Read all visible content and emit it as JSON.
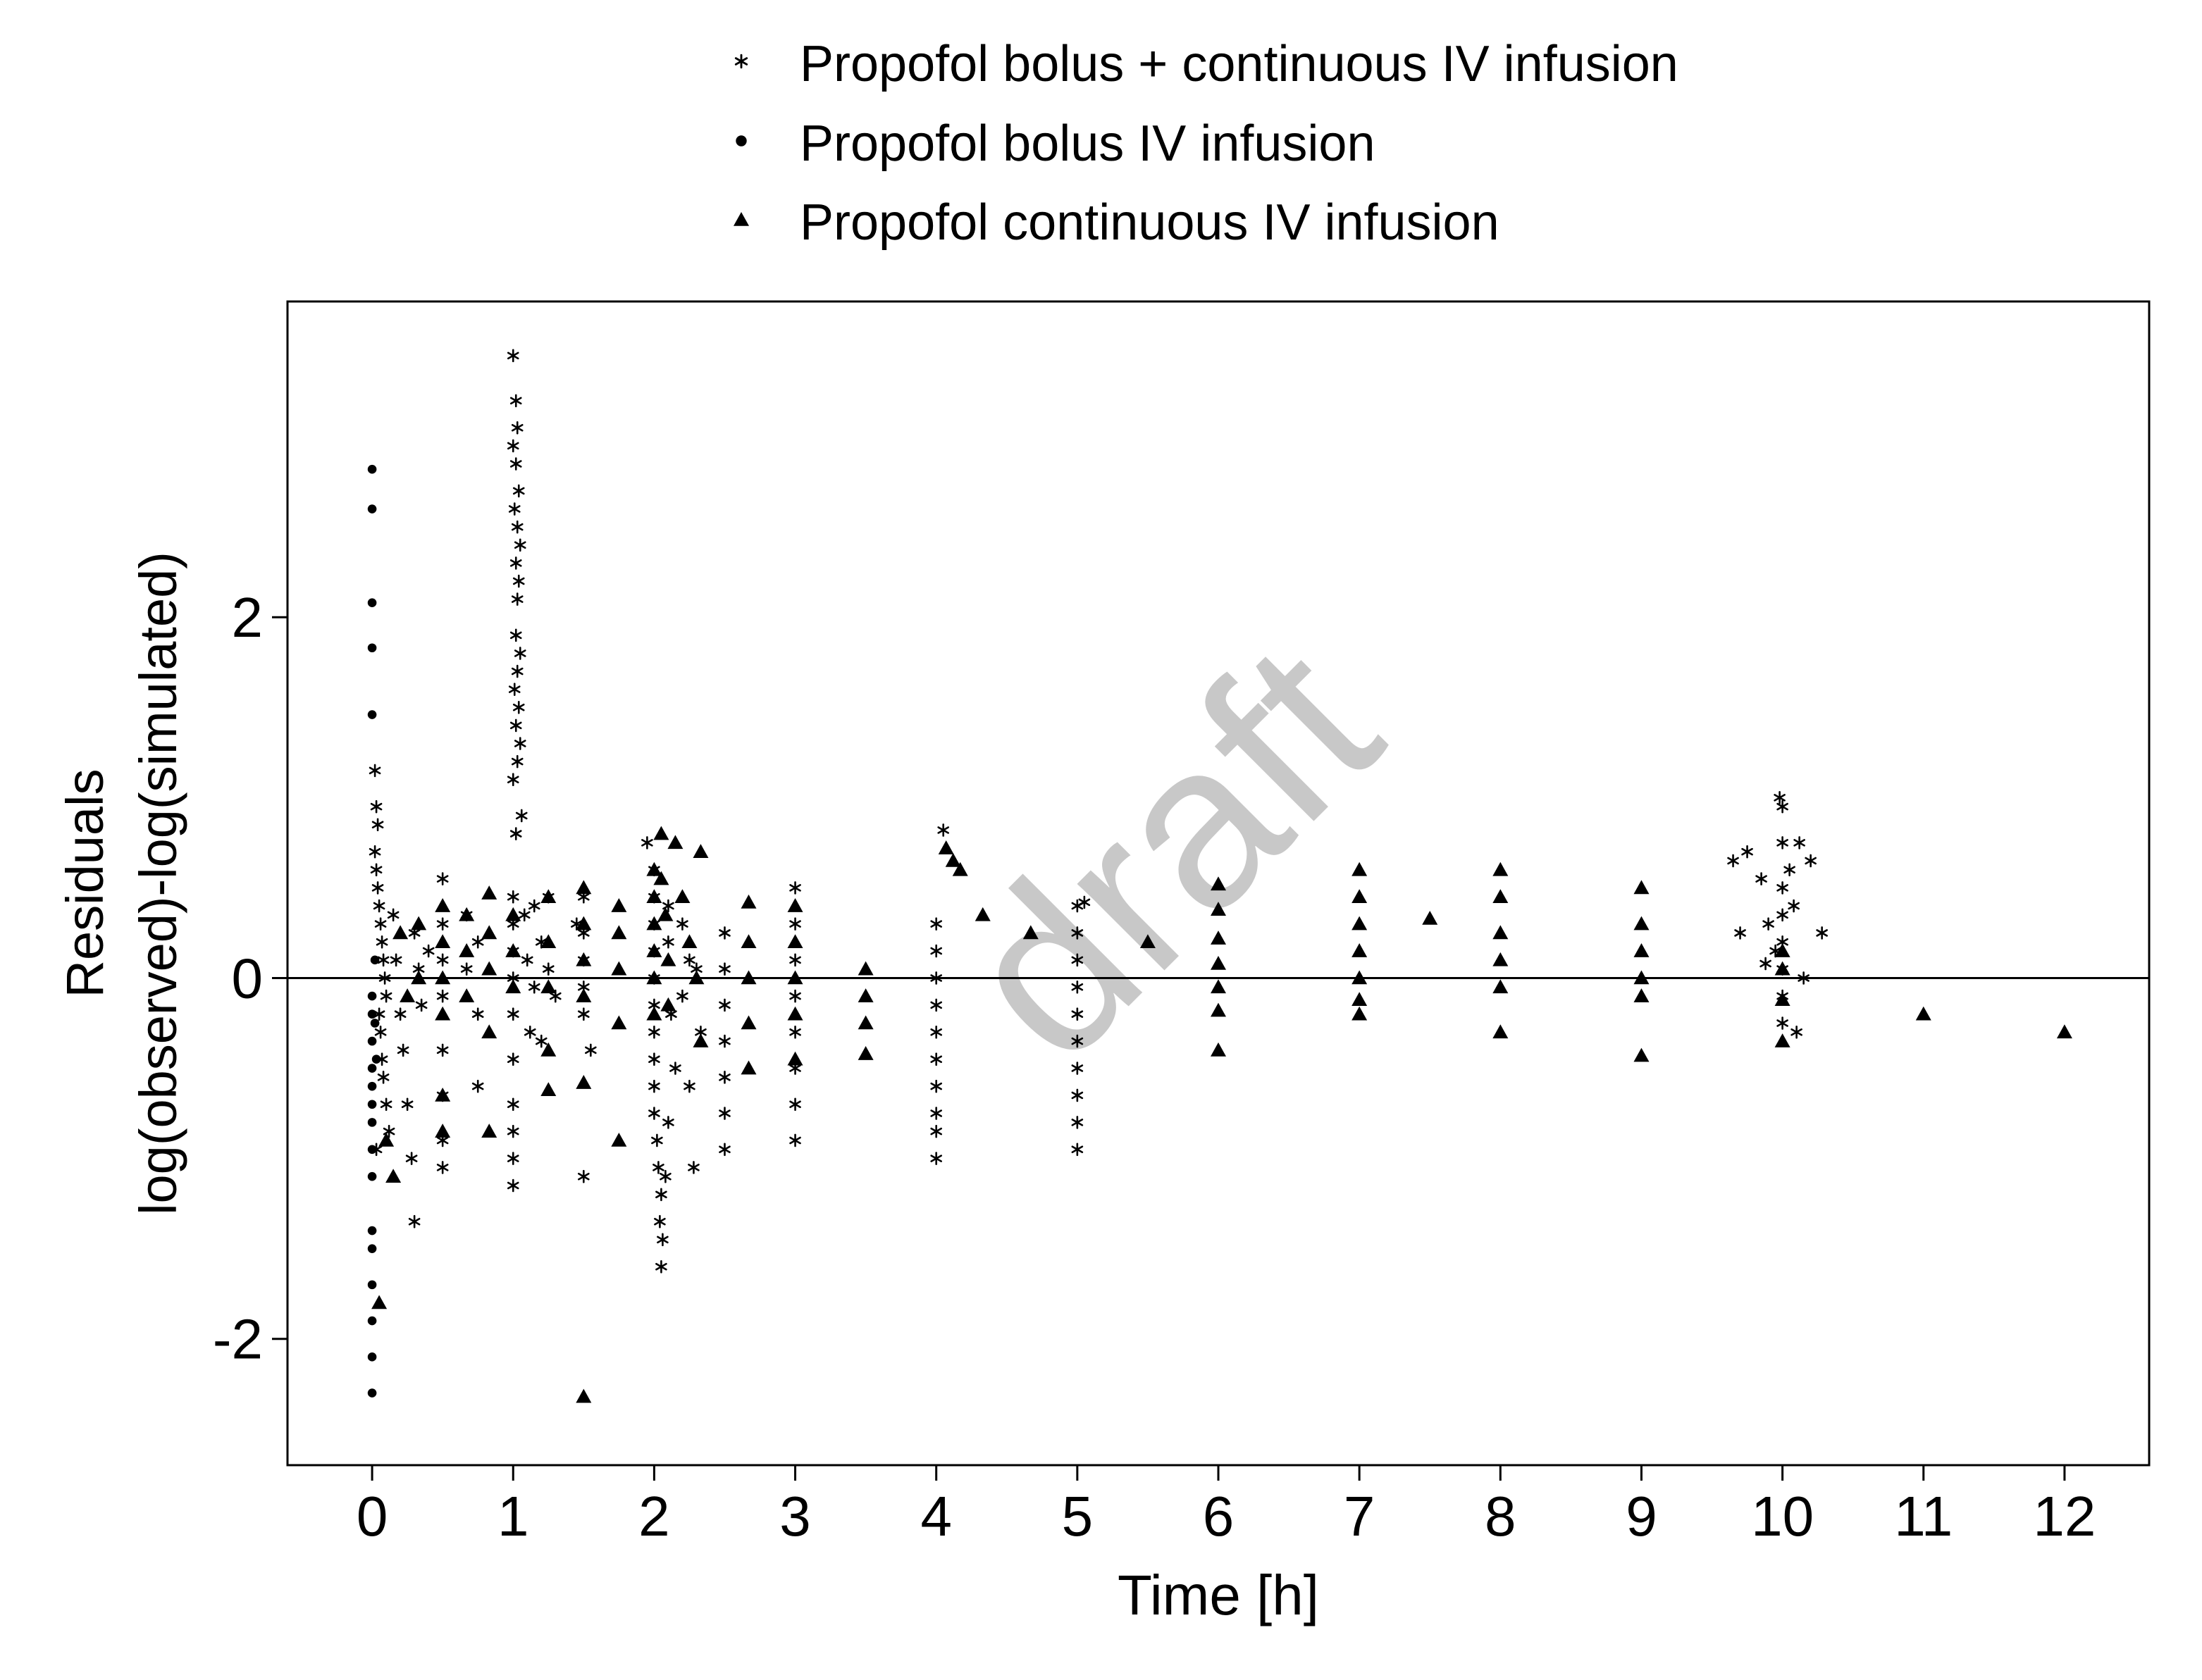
{
  "chart_data": {
    "type": "scatter",
    "xlabel": "Time [h]",
    "ylabel_lines": [
      "Residuals",
      "log(observed)-log(simulated)"
    ],
    "xlim": [
      -0.6,
      12.6
    ],
    "ylim": [
      -2.7,
      3.75
    ],
    "x_ticks": [
      0,
      1,
      2,
      3,
      4,
      5,
      6,
      7,
      8,
      9,
      10,
      11,
      12
    ],
    "x_tick_labels": [
      "0",
      "1",
      "2",
      "3",
      "4",
      "5",
      "6",
      "7",
      "8",
      "9",
      "10",
      "11",
      "12"
    ],
    "y_ticks": [
      -2,
      0,
      2
    ],
    "y_tick_labels": [
      "-2",
      "0",
      "2"
    ],
    "reference_line_y": 0,
    "legend_position": "top",
    "watermark": "draft",
    "series": [
      {
        "name": "Propofol bolus + continuous IV infusion",
        "marker": "asterisk",
        "points": [
          [
            0.02,
            1.15
          ],
          [
            0.03,
            0.95
          ],
          [
            0.04,
            0.85
          ],
          [
            0.02,
            0.7
          ],
          [
            0.03,
            0.6
          ],
          [
            0.04,
            0.5
          ],
          [
            0.05,
            0.4
          ],
          [
            0.06,
            0.3
          ],
          [
            0.07,
            0.2
          ],
          [
            0.08,
            0.1
          ],
          [
            0.09,
            0.0
          ],
          [
            0.1,
            -0.1
          ],
          [
            0.05,
            -0.2
          ],
          [
            0.06,
            -0.3
          ],
          [
            0.07,
            -0.45
          ],
          [
            0.08,
            -0.55
          ],
          [
            0.1,
            -0.7
          ],
          [
            0.12,
            -0.85
          ],
          [
            0.03,
            -0.95
          ],
          [
            0.15,
            0.35
          ],
          [
            0.17,
            0.1
          ],
          [
            0.2,
            -0.2
          ],
          [
            0.22,
            -0.4
          ],
          [
            0.25,
            -0.7
          ],
          [
            0.28,
            -1.0
          ],
          [
            0.3,
            -1.35
          ],
          [
            0.3,
            0.25
          ],
          [
            0.33,
            0.05
          ],
          [
            0.35,
            -0.15
          ],
          [
            0.4,
            0.15
          ],
          [
            0.5,
            0.55
          ],
          [
            0.5,
            0.3
          ],
          [
            0.5,
            0.1
          ],
          [
            0.5,
            -0.1
          ],
          [
            0.5,
            -0.4
          ],
          [
            0.5,
            -0.65
          ],
          [
            0.5,
            -0.9
          ],
          [
            0.5,
            -1.05
          ],
          [
            0.67,
            0.35
          ],
          [
            0.67,
            0.05
          ],
          [
            0.75,
            0.2
          ],
          [
            0.75,
            -0.2
          ],
          [
            0.75,
            -0.6
          ],
          [
            1.0,
            3.45
          ],
          [
            1.02,
            3.2
          ],
          [
            1.03,
            3.05
          ],
          [
            1.0,
            2.95
          ],
          [
            1.02,
            2.85
          ],
          [
            1.04,
            2.7
          ],
          [
            1.01,
            2.6
          ],
          [
            1.03,
            2.5
          ],
          [
            1.05,
            2.4
          ],
          [
            1.02,
            2.3
          ],
          [
            1.04,
            2.2
          ],
          [
            1.03,
            2.1
          ],
          [
            1.02,
            1.9
          ],
          [
            1.05,
            1.8
          ],
          [
            1.03,
            1.7
          ],
          [
            1.01,
            1.6
          ],
          [
            1.04,
            1.5
          ],
          [
            1.02,
            1.4
          ],
          [
            1.05,
            1.3
          ],
          [
            1.03,
            1.2
          ],
          [
            1.0,
            1.1
          ],
          [
            1.06,
            0.9
          ],
          [
            1.02,
            0.8
          ],
          [
            1.0,
            0.45
          ],
          [
            1.0,
            0.3
          ],
          [
            1.0,
            0.15
          ],
          [
            1.0,
            0.0
          ],
          [
            1.0,
            -0.2
          ],
          [
            1.0,
            -0.45
          ],
          [
            1.0,
            -0.7
          ],
          [
            1.0,
            -0.85
          ],
          [
            1.0,
            -1.0
          ],
          [
            1.0,
            -1.15
          ],
          [
            1.08,
            0.35
          ],
          [
            1.1,
            0.1
          ],
          [
            1.12,
            -0.3
          ],
          [
            1.15,
            0.4
          ],
          [
            1.15,
            -0.05
          ],
          [
            1.2,
            0.2
          ],
          [
            1.2,
            -0.35
          ],
          [
            1.25,
            0.45
          ],
          [
            1.25,
            0.05
          ],
          [
            1.3,
            -0.1
          ],
          [
            1.5,
            0.45
          ],
          [
            1.5,
            0.25
          ],
          [
            1.5,
            0.1
          ],
          [
            1.5,
            -0.05
          ],
          [
            1.5,
            -0.2
          ],
          [
            1.5,
            -1.1
          ],
          [
            1.55,
            -0.4
          ],
          [
            1.45,
            0.3
          ],
          [
            1.95,
            0.75
          ],
          [
            2.0,
            0.6
          ],
          [
            2.0,
            0.45
          ],
          [
            2.0,
            0.3
          ],
          [
            2.0,
            0.15
          ],
          [
            2.0,
            0.0
          ],
          [
            2.0,
            -0.15
          ],
          [
            2.0,
            -0.3
          ],
          [
            2.0,
            -0.45
          ],
          [
            2.0,
            -0.6
          ],
          [
            2.0,
            -0.75
          ],
          [
            2.02,
            -0.9
          ],
          [
            2.03,
            -1.05
          ],
          [
            2.05,
            -1.2
          ],
          [
            2.04,
            -1.35
          ],
          [
            2.06,
            -1.45
          ],
          [
            2.05,
            -1.6
          ],
          [
            2.08,
            -1.1
          ],
          [
            2.1,
            -0.8
          ],
          [
            2.1,
            0.4
          ],
          [
            2.1,
            0.2
          ],
          [
            2.12,
            -0.2
          ],
          [
            2.15,
            -0.5
          ],
          [
            2.2,
            0.3
          ],
          [
            2.2,
            -0.1
          ],
          [
            2.25,
            0.1
          ],
          [
            2.25,
            -0.6
          ],
          [
            2.28,
            -1.05
          ],
          [
            2.3,
            0.05
          ],
          [
            2.33,
            -0.3
          ],
          [
            2.5,
            0.25
          ],
          [
            2.5,
            0.05
          ],
          [
            2.5,
            -0.15
          ],
          [
            2.5,
            -0.35
          ],
          [
            2.5,
            -0.55
          ],
          [
            2.5,
            -0.75
          ],
          [
            2.5,
            -0.95
          ],
          [
            3.0,
            0.5
          ],
          [
            3.0,
            0.3
          ],
          [
            3.0,
            0.1
          ],
          [
            3.0,
            -0.1
          ],
          [
            3.0,
            -0.3
          ],
          [
            3.0,
            -0.5
          ],
          [
            3.0,
            -0.7
          ],
          [
            3.0,
            -0.9
          ],
          [
            4.0,
            0.3
          ],
          [
            4.0,
            0.15
          ],
          [
            4.0,
            0.0
          ],
          [
            4.0,
            -0.15
          ],
          [
            4.0,
            -0.3
          ],
          [
            4.0,
            -0.45
          ],
          [
            4.0,
            -0.6
          ],
          [
            4.0,
            -0.75
          ],
          [
            4.0,
            -0.85
          ],
          [
            4.0,
            -1.0
          ],
          [
            4.05,
            0.82
          ],
          [
            5.0,
            0.4
          ],
          [
            5.0,
            0.25
          ],
          [
            5.0,
            0.1
          ],
          [
            5.0,
            -0.05
          ],
          [
            5.0,
            -0.2
          ],
          [
            5.0,
            -0.35
          ],
          [
            5.0,
            -0.5
          ],
          [
            5.0,
            -0.65
          ],
          [
            5.0,
            -0.8
          ],
          [
            5.0,
            -0.95
          ],
          [
            5.05,
            0.42
          ],
          [
            9.65,
            0.65
          ],
          [
            9.75,
            0.7
          ],
          [
            9.85,
            0.55
          ],
          [
            9.9,
            0.3
          ],
          [
            9.95,
            0.15
          ],
          [
            9.98,
            1.0
          ],
          [
            10.0,
            0.95
          ],
          [
            10.0,
            0.75
          ],
          [
            10.0,
            0.5
          ],
          [
            10.0,
            0.35
          ],
          [
            10.0,
            0.2
          ],
          [
            10.0,
            0.05
          ],
          [
            10.0,
            -0.1
          ],
          [
            10.0,
            -0.25
          ],
          [
            10.05,
            0.6
          ],
          [
            10.08,
            0.4
          ],
          [
            10.1,
            -0.3
          ],
          [
            10.12,
            0.75
          ],
          [
            10.15,
            0.0
          ],
          [
            10.2,
            0.65
          ],
          [
            9.7,
            0.25
          ],
          [
            10.28,
            0.25
          ],
          [
            9.88,
            0.08
          ]
        ]
      },
      {
        "name": "Propofol bolus IV infusion",
        "marker": "dot",
        "points": [
          [
            0.0,
            2.82
          ],
          [
            0.0,
            2.6
          ],
          [
            0.0,
            2.08
          ],
          [
            0.0,
            1.83
          ],
          [
            0.0,
            1.46
          ],
          [
            0.0,
            -0.1
          ],
          [
            0.0,
            -0.2
          ],
          [
            0.0,
            -0.35
          ],
          [
            0.0,
            -0.5
          ],
          [
            0.0,
            -0.6
          ],
          [
            0.0,
            -0.7
          ],
          [
            0.0,
            -0.8
          ],
          [
            0.0,
            -0.95
          ],
          [
            0.0,
            -1.1
          ],
          [
            0.0,
            -1.4
          ],
          [
            0.0,
            -1.5
          ],
          [
            0.0,
            -1.7
          ],
          [
            0.0,
            -1.9
          ],
          [
            0.0,
            -2.1
          ],
          [
            0.0,
            -2.3
          ],
          [
            0.02,
            0.1
          ],
          [
            0.02,
            -0.25
          ],
          [
            0.03,
            -0.45
          ]
        ]
      },
      {
        "name": "Propofol continuous IV infusion",
        "marker": "triangle",
        "points": [
          [
            0.05,
            -1.8
          ],
          [
            0.1,
            -0.9
          ],
          [
            0.15,
            -1.1
          ],
          [
            0.2,
            0.25
          ],
          [
            0.25,
            -0.1
          ],
          [
            0.33,
            0.3
          ],
          [
            0.33,
            0.0
          ],
          [
            0.5,
            0.4
          ],
          [
            0.5,
            0.2
          ],
          [
            0.5,
            0.0
          ],
          [
            0.5,
            -0.2
          ],
          [
            0.5,
            -0.65
          ],
          [
            0.5,
            -0.85
          ],
          [
            0.67,
            0.35
          ],
          [
            0.67,
            0.15
          ],
          [
            0.67,
            -0.1
          ],
          [
            0.83,
            0.47
          ],
          [
            0.83,
            0.25
          ],
          [
            0.83,
            0.05
          ],
          [
            0.83,
            -0.3
          ],
          [
            0.83,
            -0.85
          ],
          [
            1.0,
            0.35
          ],
          [
            1.0,
            0.15
          ],
          [
            1.0,
            -0.05
          ],
          [
            1.25,
            0.45
          ],
          [
            1.25,
            0.2
          ],
          [
            1.25,
            -0.05
          ],
          [
            1.25,
            -0.4
          ],
          [
            1.25,
            -0.62
          ],
          [
            1.5,
            0.5
          ],
          [
            1.5,
            0.3
          ],
          [
            1.5,
            0.1
          ],
          [
            1.5,
            -0.1
          ],
          [
            1.5,
            -0.58
          ],
          [
            1.5,
            -2.32
          ],
          [
            1.75,
            0.4
          ],
          [
            1.75,
            0.25
          ],
          [
            1.75,
            0.05
          ],
          [
            1.75,
            -0.25
          ],
          [
            1.75,
            -0.9
          ],
          [
            2.0,
            0.6
          ],
          [
            2.0,
            0.45
          ],
          [
            2.0,
            0.3
          ],
          [
            2.0,
            0.15
          ],
          [
            2.0,
            0.0
          ],
          [
            2.0,
            -0.2
          ],
          [
            2.05,
            0.8
          ],
          [
            2.05,
            0.55
          ],
          [
            2.08,
            0.35
          ],
          [
            2.1,
            0.1
          ],
          [
            2.1,
            -0.15
          ],
          [
            2.15,
            0.75
          ],
          [
            2.2,
            0.45
          ],
          [
            2.25,
            0.2
          ],
          [
            2.3,
            0.0
          ],
          [
            2.33,
            0.7
          ],
          [
            2.33,
            -0.35
          ],
          [
            2.67,
            0.42
          ],
          [
            2.67,
            0.2
          ],
          [
            2.67,
            0.0
          ],
          [
            2.67,
            -0.25
          ],
          [
            2.67,
            -0.5
          ],
          [
            3.0,
            0.4
          ],
          [
            3.0,
            0.2
          ],
          [
            3.0,
            0.0
          ],
          [
            3.0,
            -0.2
          ],
          [
            3.0,
            -0.45
          ],
          [
            3.5,
            0.05
          ],
          [
            3.5,
            -0.1
          ],
          [
            3.5,
            -0.25
          ],
          [
            3.5,
            -0.42
          ],
          [
            4.07,
            0.72
          ],
          [
            4.12,
            0.65
          ],
          [
            4.17,
            0.6
          ],
          [
            4.33,
            0.35
          ],
          [
            4.67,
            0.25
          ],
          [
            5.5,
            0.2
          ],
          [
            6.0,
            0.52
          ],
          [
            6.0,
            0.38
          ],
          [
            6.0,
            0.22
          ],
          [
            6.0,
            0.08
          ],
          [
            6.0,
            -0.05
          ],
          [
            6.0,
            -0.18
          ],
          [
            6.0,
            -0.4
          ],
          [
            7.0,
            0.6
          ],
          [
            7.0,
            0.45
          ],
          [
            7.0,
            0.3
          ],
          [
            7.0,
            0.15
          ],
          [
            7.0,
            0.0
          ],
          [
            7.0,
            -0.12
          ],
          [
            7.0,
            -0.2
          ],
          [
            7.5,
            0.33
          ],
          [
            8.0,
            0.6
          ],
          [
            8.0,
            0.45
          ],
          [
            8.0,
            0.25
          ],
          [
            8.0,
            0.1
          ],
          [
            8.0,
            -0.05
          ],
          [
            8.0,
            -0.3
          ],
          [
            9.0,
            0.5
          ],
          [
            9.0,
            0.3
          ],
          [
            9.0,
            0.15
          ],
          [
            9.0,
            0.0
          ],
          [
            9.0,
            -0.1
          ],
          [
            9.0,
            -0.43
          ],
          [
            10.0,
            0.15
          ],
          [
            10.0,
            0.05
          ],
          [
            10.0,
            -0.12
          ],
          [
            10.0,
            -0.35
          ],
          [
            11.0,
            -0.2
          ],
          [
            12.0,
            -0.3
          ]
        ]
      }
    ]
  }
}
